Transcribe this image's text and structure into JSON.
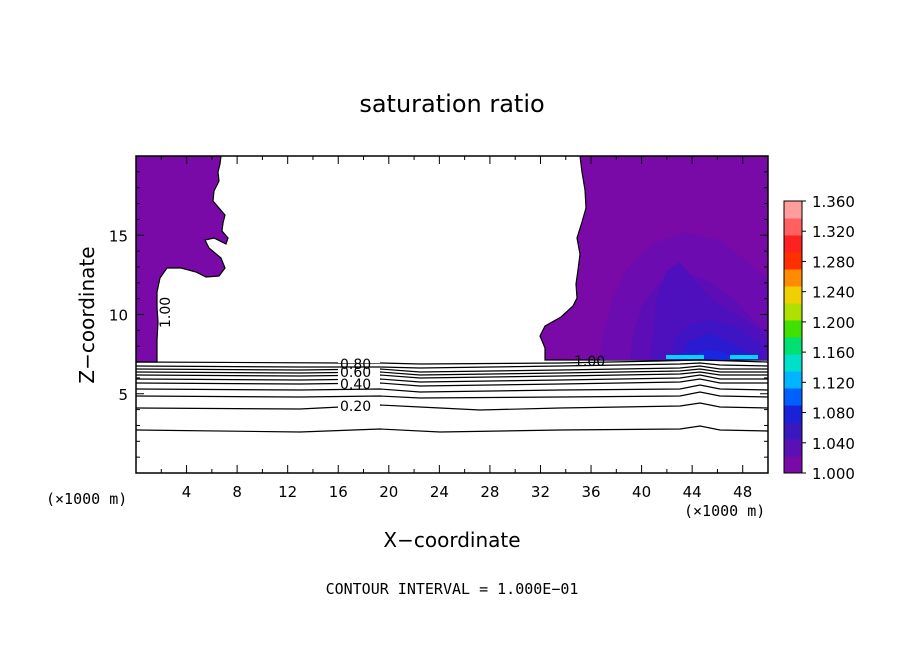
{
  "chart_data": {
    "type": "contour",
    "title": "saturation ratio",
    "xlabel": "X−coordinate",
    "ylabel": "Z−coordinate",
    "x_unit_left": "(×1000 m)",
    "x_unit_right": "(×1000 m)",
    "xlim": [
      0,
      50
    ],
    "ylim": [
      0,
      20
    ],
    "x_ticks": [
      4,
      8,
      12,
      16,
      20,
      24,
      28,
      32,
      36,
      40,
      44,
      48
    ],
    "y_ticks": [
      5,
      10,
      15
    ],
    "footer": "CONTOUR INTERVAL = 1.000E−01",
    "contour_labels": [
      {
        "text": "0.80",
        "x": 17.6,
        "z": 6.7
      },
      {
        "text": "0.60",
        "x": 17.6,
        "z": 6.3
      },
      {
        "text": "0.40",
        "x": 17.6,
        "z": 5.6
      },
      {
        "text": "0.20",
        "x": 17.6,
        "z": 4.1
      },
      {
        "text": "1.00",
        "x": 35.5,
        "z": 7.1
      },
      {
        "text": "1.00",
        "x": 2.2,
        "z": 10.2
      }
    ],
    "colorbar": {
      "min": 1.0,
      "max": 1.36,
      "ticks": [
        "1.360",
        "1.320",
        "1.280",
        "1.240",
        "1.200",
        "1.160",
        "1.120",
        "1.080",
        "1.040",
        "1.000"
      ],
      "colors": [
        "#7a0aa8",
        "#5a10b4",
        "#3a18c0",
        "#1a22d8",
        "#0060ff",
        "#00b4ff",
        "#00e0c8",
        "#00e070",
        "#40e000",
        "#b0e000",
        "#f0d000",
        "#ff8c00",
        "#ff3000",
        "#ff2020",
        "#ff6060",
        "#ff9c9c"
      ]
    }
  }
}
